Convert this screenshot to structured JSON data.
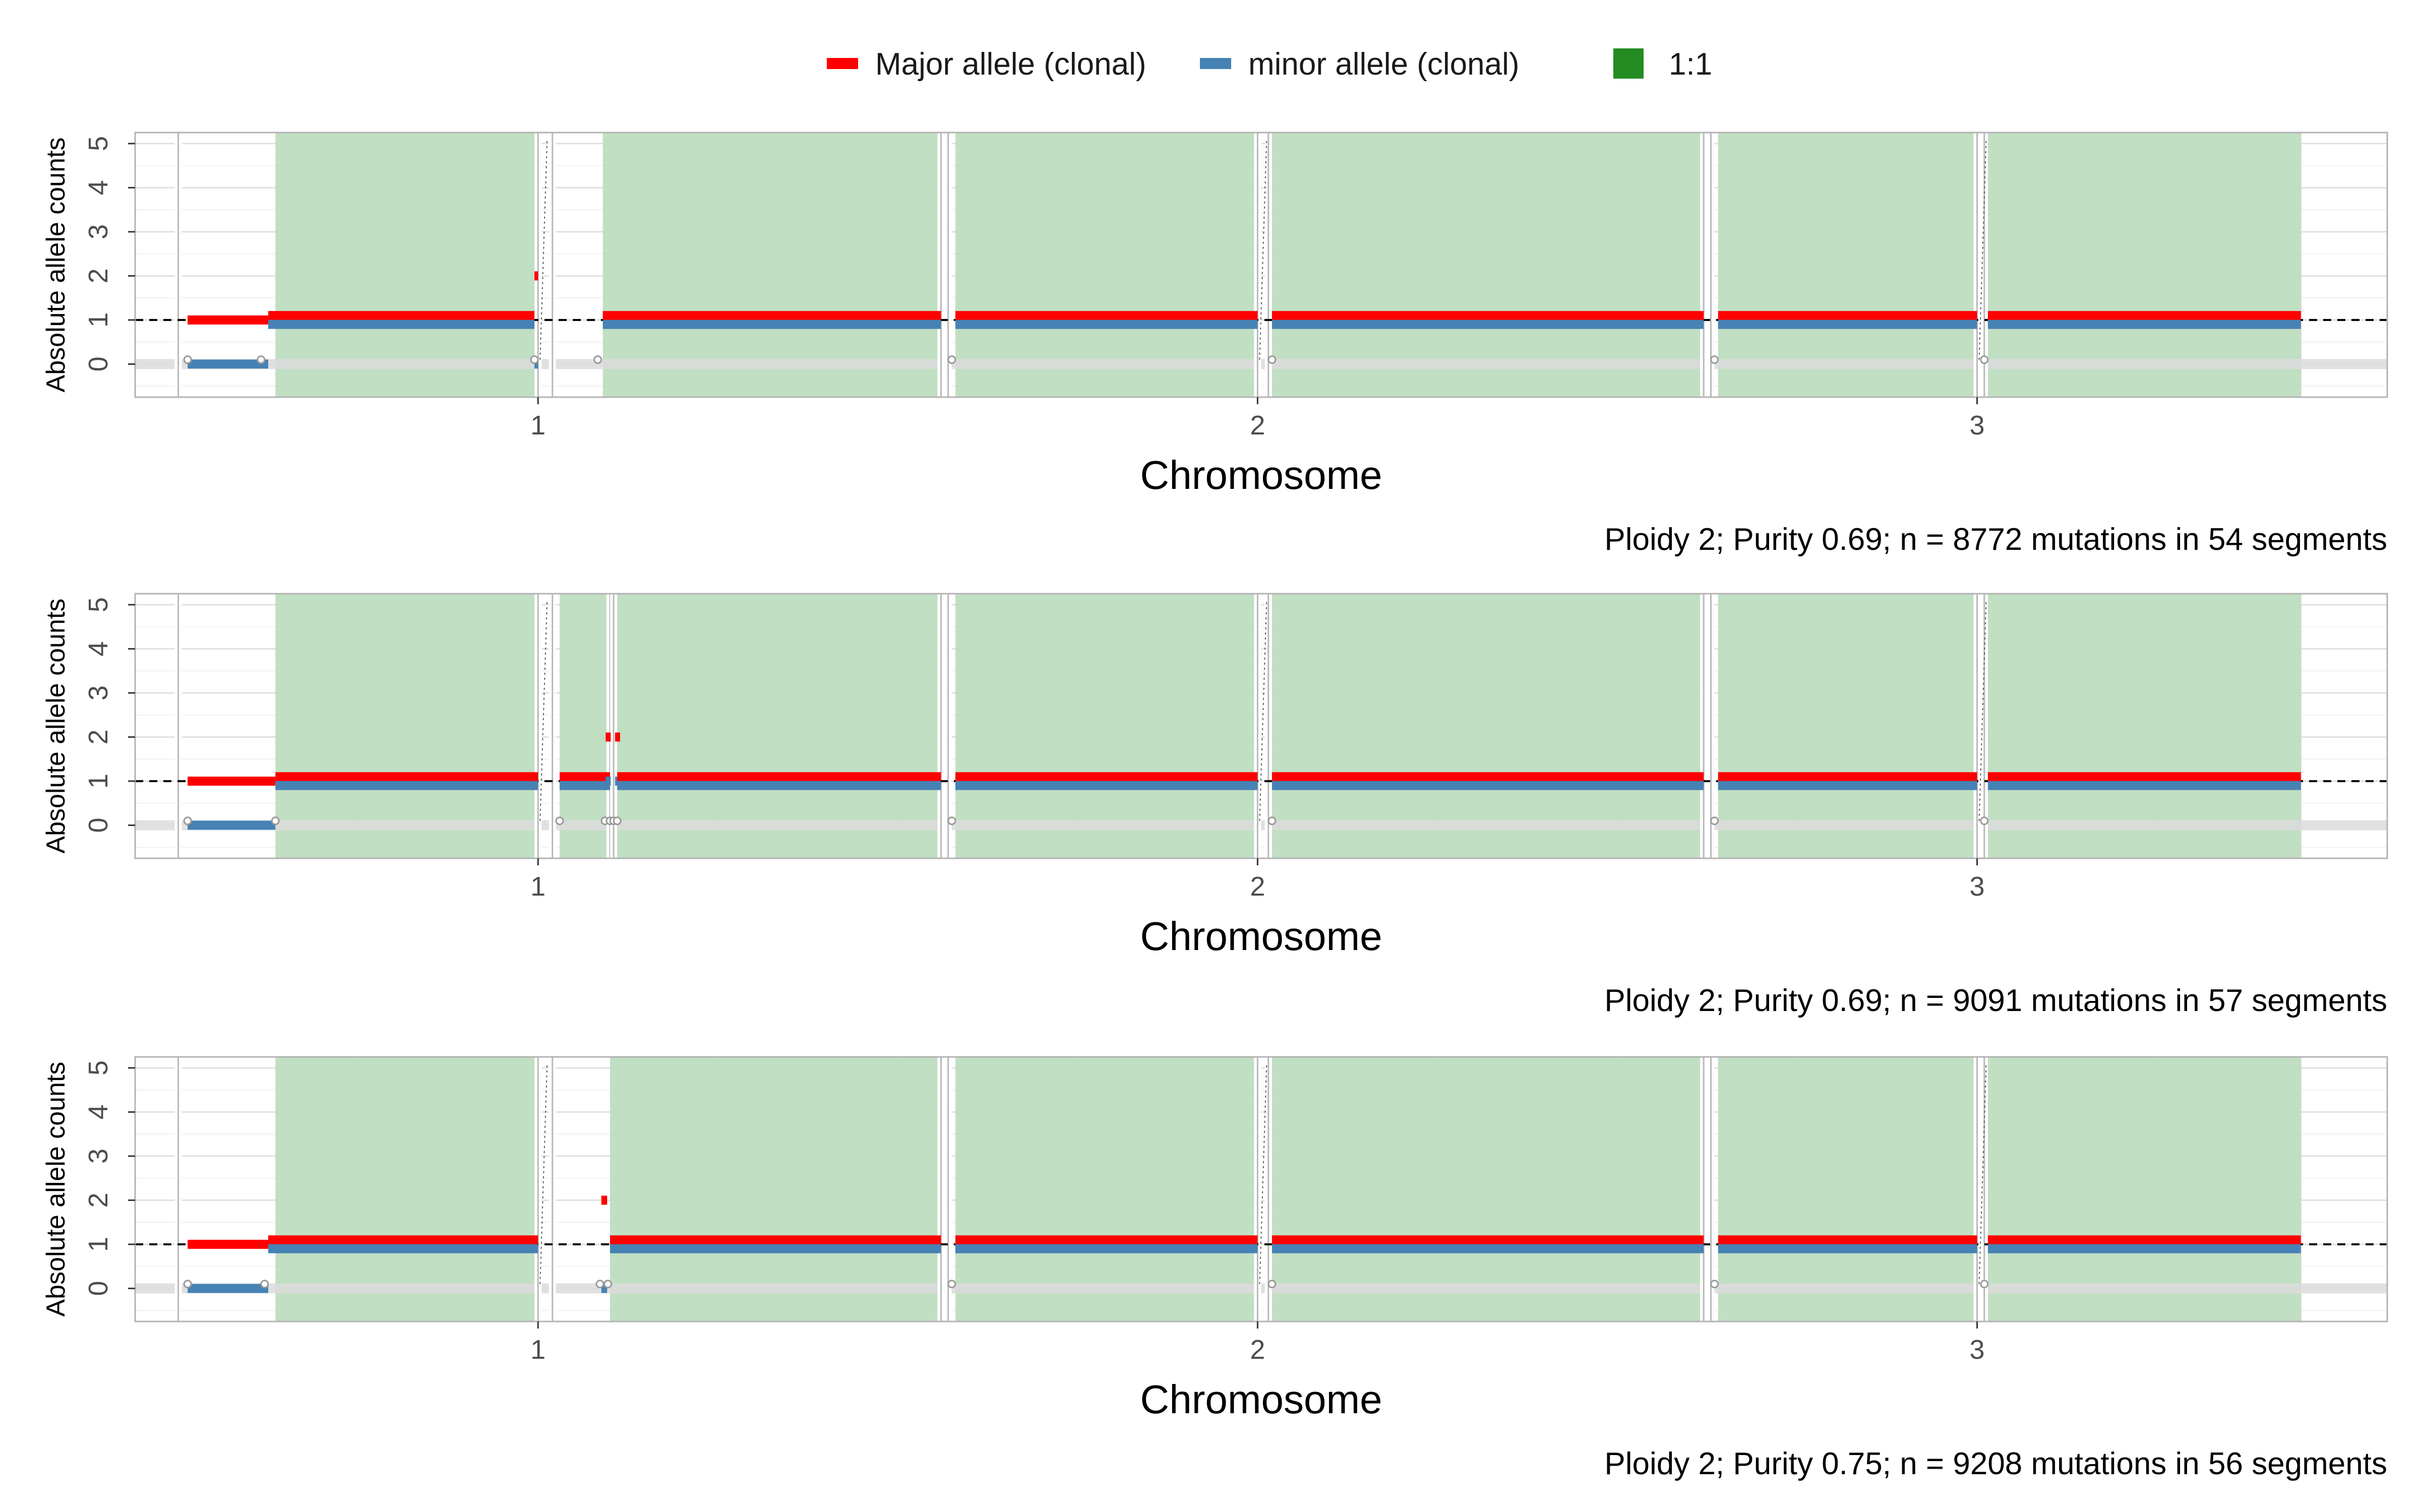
{
  "chart_data": {
    "type": "segments",
    "legend": {
      "position": "top",
      "items": [
        {
          "label": "Major allele (clonal)",
          "color": "#ff0000",
          "shape": "bar"
        },
        {
          "label": "minor allele (clonal)",
          "color": "#4682b4",
          "shape": "bar"
        },
        {
          "label": "1:1",
          "color": "#228b22",
          "shape": "square"
        }
      ]
    },
    "colors": {
      "major": "#ff0000",
      "minor": "#4682b4",
      "balanced_fill": "#bcdcbd",
      "ploidy_line": "#000000",
      "zero_band": "#dcdcdc"
    },
    "grid": true,
    "panels": [
      {
        "xlabel": "Chromosome",
        "ylabel": "Absolute allele counts",
        "x_ticks": [
          1,
          2,
          3
        ],
        "y_ticks": [
          0,
          1,
          2,
          3,
          4,
          5
        ],
        "xlim": [
          0.44,
          3.57
        ],
        "ylim": [
          -0.75,
          5.25
        ],
        "ploidy_line": 1,
        "caption": "Ploidy 2; Purity  0.69; n = 8772 mutations in 54 segments",
        "shaded_regions": [
          [
            0.635,
            1.0
          ],
          [
            1.09,
            1.56
          ],
          [
            1.58,
            2.0
          ],
          [
            2.02,
            2.62
          ],
          [
            2.64,
            3.0
          ],
          [
            3.015,
            3.45
          ]
        ],
        "chrom_boundaries": [
          0.5,
          1.0,
          1.02,
          1.56,
          1.57,
          2.0,
          2.015,
          2.62,
          2.63,
          3.0,
          3.01
        ],
        "breakpoints": [
          0.513,
          0.615,
          0.995,
          1.083,
          1.575,
          2.02,
          2.635,
          3.01
        ],
        "segments": [
          {
            "start": 0.513,
            "end": 0.625,
            "major": 1,
            "minor": 0
          },
          {
            "start": 0.625,
            "end": 0.995,
            "major": 1,
            "minor": 1
          },
          {
            "start": 0.995,
            "end": 1.0,
            "major": 2,
            "minor": 0
          },
          {
            "start": 1.09,
            "end": 1.56,
            "major": 1,
            "minor": 1
          },
          {
            "start": 1.58,
            "end": 2.0,
            "major": 1,
            "minor": 1
          },
          {
            "start": 2.02,
            "end": 2.62,
            "major": 1,
            "minor": 1
          },
          {
            "start": 2.64,
            "end": 3.0,
            "major": 1,
            "minor": 1
          },
          {
            "start": 3.015,
            "end": 3.45,
            "major": 1,
            "minor": 1
          }
        ]
      },
      {
        "xlabel": "Chromosome",
        "ylabel": "Absolute allele counts",
        "x_ticks": [
          1,
          2,
          3
        ],
        "y_ticks": [
          0,
          1,
          2,
          3,
          4,
          5
        ],
        "xlim": [
          0.44,
          3.57
        ],
        "ylim": [
          -0.75,
          5.25
        ],
        "ploidy_line": 1,
        "caption": "Ploidy 2; Purity  0.69; n = 9091 mutations in 57 segments",
        "shaded_regions": [
          [
            0.635,
            1.0
          ],
          [
            1.03,
            1.1
          ],
          [
            1.11,
            1.56
          ],
          [
            1.58,
            2.0
          ],
          [
            2.02,
            2.62
          ],
          [
            2.64,
            3.0
          ],
          [
            3.015,
            3.45
          ]
        ],
        "chrom_boundaries": [
          0.5,
          1.0,
          1.02,
          1.1,
          1.105,
          1.56,
          1.57,
          2.0,
          2.015,
          2.62,
          2.63,
          3.0,
          3.01
        ],
        "breakpoints": [
          0.513,
          0.635,
          1.03,
          1.093,
          1.1,
          1.105,
          1.11,
          1.575,
          2.02,
          2.635,
          3.01
        ],
        "segments": [
          {
            "start": 0.513,
            "end": 0.635,
            "major": 1,
            "minor": 0
          },
          {
            "start": 0.635,
            "end": 1.0,
            "major": 1,
            "minor": 1
          },
          {
            "start": 1.03,
            "end": 1.1,
            "major": 1,
            "minor": 1
          },
          {
            "start": 1.094,
            "end": 1.101,
            "major": 2,
            "minor": 1
          },
          {
            "start": 1.107,
            "end": 1.114,
            "major": 2,
            "minor": 1
          },
          {
            "start": 1.11,
            "end": 1.56,
            "major": 1,
            "minor": 1
          },
          {
            "start": 1.58,
            "end": 2.0,
            "major": 1,
            "minor": 1
          },
          {
            "start": 2.02,
            "end": 2.62,
            "major": 1,
            "minor": 1
          },
          {
            "start": 2.64,
            "end": 3.0,
            "major": 1,
            "minor": 1
          },
          {
            "start": 3.015,
            "end": 3.45,
            "major": 1,
            "minor": 1
          }
        ]
      },
      {
        "xlabel": "Chromosome",
        "ylabel": "Absolute allele counts",
        "x_ticks": [
          1,
          2,
          3
        ],
        "y_ticks": [
          0,
          1,
          2,
          3,
          4,
          5
        ],
        "xlim": [
          0.44,
          3.57
        ],
        "ylim": [
          -0.75,
          5.25
        ],
        "ploidy_line": 1,
        "caption": "Ploidy 2; Purity  0.75; n = 9208 mutations in 56 segments",
        "shaded_regions": [
          [
            0.635,
            1.0
          ],
          [
            1.1,
            1.56
          ],
          [
            1.58,
            2.0
          ],
          [
            2.02,
            2.62
          ],
          [
            2.64,
            3.0
          ],
          [
            3.015,
            3.45
          ]
        ],
        "chrom_boundaries": [
          0.5,
          1.0,
          1.02,
          1.56,
          1.57,
          2.0,
          2.015,
          2.62,
          2.63,
          3.0,
          3.01
        ],
        "breakpoints": [
          0.513,
          0.62,
          1.086,
          1.097,
          1.575,
          2.02,
          2.635,
          3.01
        ],
        "segments": [
          {
            "start": 0.513,
            "end": 0.625,
            "major": 1,
            "minor": 0
          },
          {
            "start": 0.625,
            "end": 1.0,
            "major": 1,
            "minor": 1
          },
          {
            "start": 1.088,
            "end": 1.096,
            "major": 2,
            "minor": 0
          },
          {
            "start": 1.1,
            "end": 1.56,
            "major": 1,
            "minor": 1
          },
          {
            "start": 1.58,
            "end": 2.0,
            "major": 1,
            "minor": 1
          },
          {
            "start": 2.02,
            "end": 2.62,
            "major": 1,
            "minor": 1
          },
          {
            "start": 2.64,
            "end": 3.0,
            "major": 1,
            "minor": 1
          },
          {
            "start": 3.015,
            "end": 3.45,
            "major": 1,
            "minor": 1
          }
        ]
      }
    ]
  }
}
